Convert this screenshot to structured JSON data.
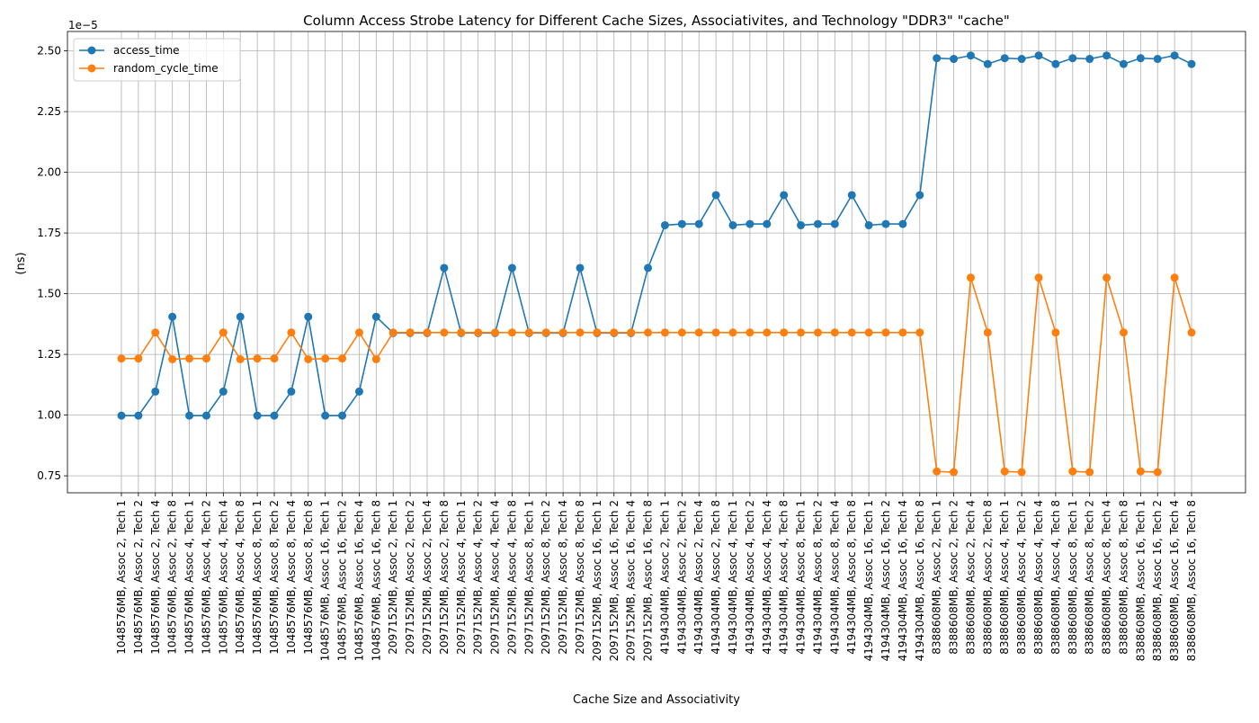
{
  "chart_data": {
    "type": "line",
    "title": "Column Access Strobe Latency for Different Cache Sizes, Associativites, and Technology \"DDR3\" \"cache\"",
    "xlabel": "Cache Size and Associativity",
    "ylabel": "(ns)",
    "y_offset_label": "1e−5",
    "ylim": [
      0.68,
      2.58
    ],
    "yticks": [
      0.75,
      1.0,
      1.25,
      1.5,
      1.75,
      2.0,
      2.25,
      2.5
    ],
    "ytick_labels": [
      "0.75",
      "1.00",
      "1.25",
      "1.50",
      "1.75",
      "2.00",
      "2.25",
      "2.50"
    ],
    "grid": true,
    "legend_position": "top-left",
    "categories": [
      "1048576MB, Assoc 2, Tech 1",
      "1048576MB, Assoc 2, Tech 2",
      "1048576MB, Assoc 2, Tech 4",
      "1048576MB, Assoc 2, Tech 8",
      "1048576MB, Assoc 4, Tech 1",
      "1048576MB, Assoc 4, Tech 2",
      "1048576MB, Assoc 4, Tech 4",
      "1048576MB, Assoc 4, Tech 8",
      "1048576MB, Assoc 8, Tech 1",
      "1048576MB, Assoc 8, Tech 2",
      "1048576MB, Assoc 8, Tech 4",
      "1048576MB, Assoc 8, Tech 8",
      "1048576MB, Assoc 16, Tech 1",
      "1048576MB, Assoc 16, Tech 2",
      "1048576MB, Assoc 16, Tech 4",
      "1048576MB, Assoc 16, Tech 8",
      "2097152MB, Assoc 2, Tech 1",
      "2097152MB, Assoc 2, Tech 2",
      "2097152MB, Assoc 2, Tech 4",
      "2097152MB, Assoc 2, Tech 8",
      "2097152MB, Assoc 4, Tech 1",
      "2097152MB, Assoc 4, Tech 2",
      "2097152MB, Assoc 4, Tech 4",
      "2097152MB, Assoc 4, Tech 8",
      "2097152MB, Assoc 8, Tech 1",
      "2097152MB, Assoc 8, Tech 2",
      "2097152MB, Assoc 8, Tech 4",
      "2097152MB, Assoc 8, Tech 8",
      "2097152MB, Assoc 16, Tech 1",
      "2097152MB, Assoc 16, Tech 2",
      "2097152MB, Assoc 16, Tech 4",
      "2097152MB, Assoc 16, Tech 8",
      "4194304MB, Assoc 2, Tech 1",
      "4194304MB, Assoc 2, Tech 2",
      "4194304MB, Assoc 2, Tech 4",
      "4194304MB, Assoc 2, Tech 8",
      "4194304MB, Assoc 4, Tech 1",
      "4194304MB, Assoc 4, Tech 2",
      "4194304MB, Assoc 4, Tech 4",
      "4194304MB, Assoc 4, Tech 8",
      "4194304MB, Assoc 8, Tech 1",
      "4194304MB, Assoc 8, Tech 2",
      "4194304MB, Assoc 8, Tech 4",
      "4194304MB, Assoc 8, Tech 8",
      "4194304MB, Assoc 16, Tech 1",
      "4194304MB, Assoc 16, Tech 2",
      "4194304MB, Assoc 16, Tech 4",
      "4194304MB, Assoc 16, Tech 8",
      "8388608MB, Assoc 2, Tech 1",
      "8388608MB, Assoc 2, Tech 2",
      "8388608MB, Assoc 2, Tech 4",
      "8388608MB, Assoc 2, Tech 8",
      "8388608MB, Assoc 4, Tech 1",
      "8388608MB, Assoc 4, Tech 2",
      "8388608MB, Assoc 4, Tech 4",
      "8388608MB, Assoc 4, Tech 8",
      "8388608MB, Assoc 8, Tech 1",
      "8388608MB, Assoc 8, Tech 2",
      "8388608MB, Assoc 8, Tech 4",
      "8388608MB, Assoc 8, Tech 8",
      "8388608MB, Assoc 16, Tech 1",
      "8388608MB, Assoc 16, Tech 2",
      "8388608MB, Assoc 16, Tech 4",
      "8388608MB, Assoc 16, Tech 8"
    ],
    "series": [
      {
        "name": "access_time",
        "color": "#1f77b4",
        "values": [
          0.998,
          0.998,
          1.097,
          1.405,
          0.998,
          0.998,
          1.097,
          1.405,
          0.998,
          0.998,
          1.097,
          1.405,
          0.998,
          0.998,
          1.097,
          1.405,
          1.338,
          1.338,
          1.338,
          1.606,
          1.338,
          1.338,
          1.338,
          1.606,
          1.338,
          1.338,
          1.338,
          1.606,
          1.338,
          1.338,
          1.338,
          1.606,
          1.782,
          1.787,
          1.787,
          1.906,
          1.782,
          1.787,
          1.787,
          1.906,
          1.782,
          1.787,
          1.787,
          1.906,
          1.782,
          1.787,
          1.787,
          1.906,
          2.47,
          2.467,
          2.481,
          2.446,
          2.47,
          2.467,
          2.481,
          2.446,
          2.47,
          2.467,
          2.481,
          2.446,
          2.47,
          2.467,
          2.481,
          2.446
        ]
      },
      {
        "name": "random_cycle_time",
        "color": "#ff7f0e",
        "values": [
          1.233,
          1.233,
          1.34,
          1.23,
          1.233,
          1.233,
          1.34,
          1.23,
          1.233,
          1.233,
          1.34,
          1.23,
          1.233,
          1.233,
          1.34,
          1.23,
          1.34,
          1.34,
          1.34,
          1.34,
          1.34,
          1.34,
          1.34,
          1.34,
          1.34,
          1.34,
          1.34,
          1.34,
          1.34,
          1.34,
          1.34,
          1.34,
          1.34,
          1.34,
          1.34,
          1.34,
          1.34,
          1.34,
          1.34,
          1.34,
          1.34,
          1.34,
          1.34,
          1.34,
          1.34,
          1.34,
          1.34,
          1.34,
          0.768,
          0.765,
          1.566,
          1.34,
          0.768,
          0.765,
          1.566,
          1.34,
          0.768,
          0.765,
          1.566,
          1.34,
          0.768,
          0.765,
          1.566,
          1.34
        ]
      }
    ]
  }
}
